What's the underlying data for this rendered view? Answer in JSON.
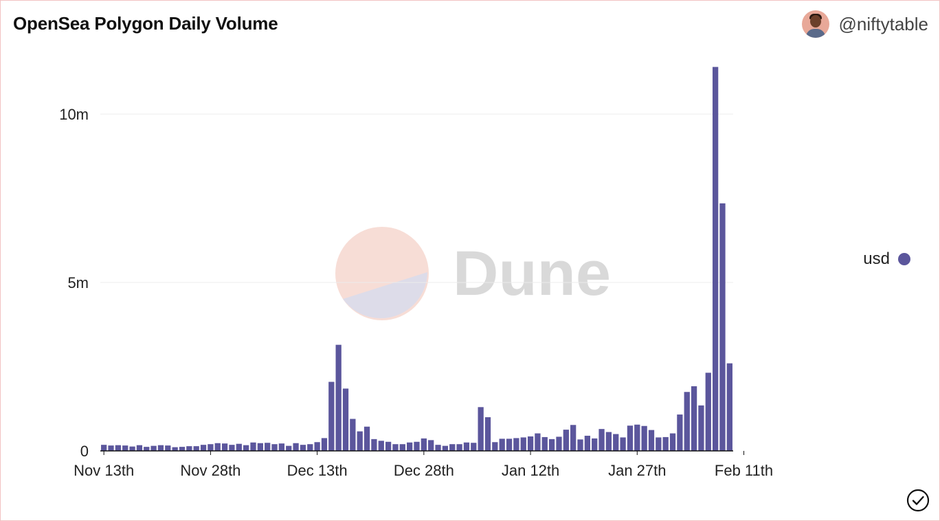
{
  "header": {
    "title": "OpenSea Polygon Daily Volume",
    "author": "@niftytable"
  },
  "watermark": {
    "text": "Dune"
  },
  "legend": {
    "label": "usd"
  },
  "colors": {
    "bar": "#5b569c",
    "grid": "#ececec",
    "watermark_text": "#d9d9d9",
    "watermark_top": "#f7ddd6",
    "watermark_bottom": "#dddce9"
  },
  "icons": {
    "avatar": "user-avatar",
    "check": "check-circle-icon"
  },
  "chart_data": {
    "type": "bar",
    "title": "OpenSea Polygon Daily Volume",
    "xlabel": "",
    "ylabel": "",
    "start_date": "2021-11-13",
    "x_ticks": [
      "Nov 13th",
      "Nov 28th",
      "Dec 13th",
      "Dec 28th",
      "Jan 12th",
      "Jan 27th",
      "Feb 11th"
    ],
    "y_ticks": [
      {
        "value": 0,
        "label": "0"
      },
      {
        "value": 5000000,
        "label": "5m"
      },
      {
        "value": 10000000,
        "label": "10m"
      }
    ],
    "ylim": [
      0,
      11500000
    ],
    "grid": true,
    "legend_position": "right",
    "series": [
      {
        "name": "usd",
        "values": [
          180000,
          160000,
          170000,
          160000,
          130000,
          170000,
          120000,
          150000,
          170000,
          160000,
          110000,
          120000,
          140000,
          140000,
          180000,
          200000,
          230000,
          220000,
          180000,
          210000,
          170000,
          250000,
          230000,
          240000,
          200000,
          220000,
          150000,
          230000,
          180000,
          200000,
          260000,
          380000,
          2050000,
          3150000,
          1850000,
          950000,
          580000,
          720000,
          350000,
          300000,
          270000,
          200000,
          200000,
          250000,
          270000,
          370000,
          320000,
          180000,
          150000,
          200000,
          200000,
          250000,
          240000,
          1300000,
          1000000,
          260000,
          360000,
          360000,
          380000,
          400000,
          430000,
          520000,
          410000,
          350000,
          420000,
          630000,
          770000,
          340000,
          450000,
          370000,
          650000,
          560000,
          500000,
          400000,
          750000,
          780000,
          740000,
          620000,
          400000,
          410000,
          520000,
          1080000,
          1750000,
          1920000,
          1350000,
          2320000,
          11400000,
          7350000,
          2600000
        ]
      }
    ]
  }
}
